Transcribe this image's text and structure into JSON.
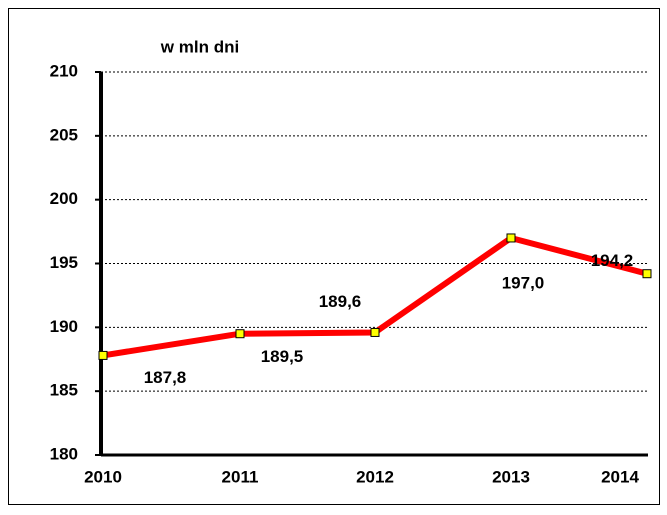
{
  "chart_data": {
    "type": "line",
    "y_axis_label": "w mln dni",
    "categories": [
      "2010",
      "2011",
      "2012",
      "2013",
      "2014"
    ],
    "series": [
      {
        "name": null,
        "color": "#ff0000",
        "marker_color": "#ffff00",
        "values": [
          187.8,
          189.5,
          189.6,
          197.0,
          194.2
        ],
        "value_labels": [
          "187,8",
          "189,5",
          "189,6",
          "197,0",
          "194,2"
        ]
      }
    ],
    "ylim": [
      180,
      210
    ],
    "yticks": [
      180,
      185,
      190,
      195,
      200,
      205,
      210
    ],
    "grid": true
  }
}
